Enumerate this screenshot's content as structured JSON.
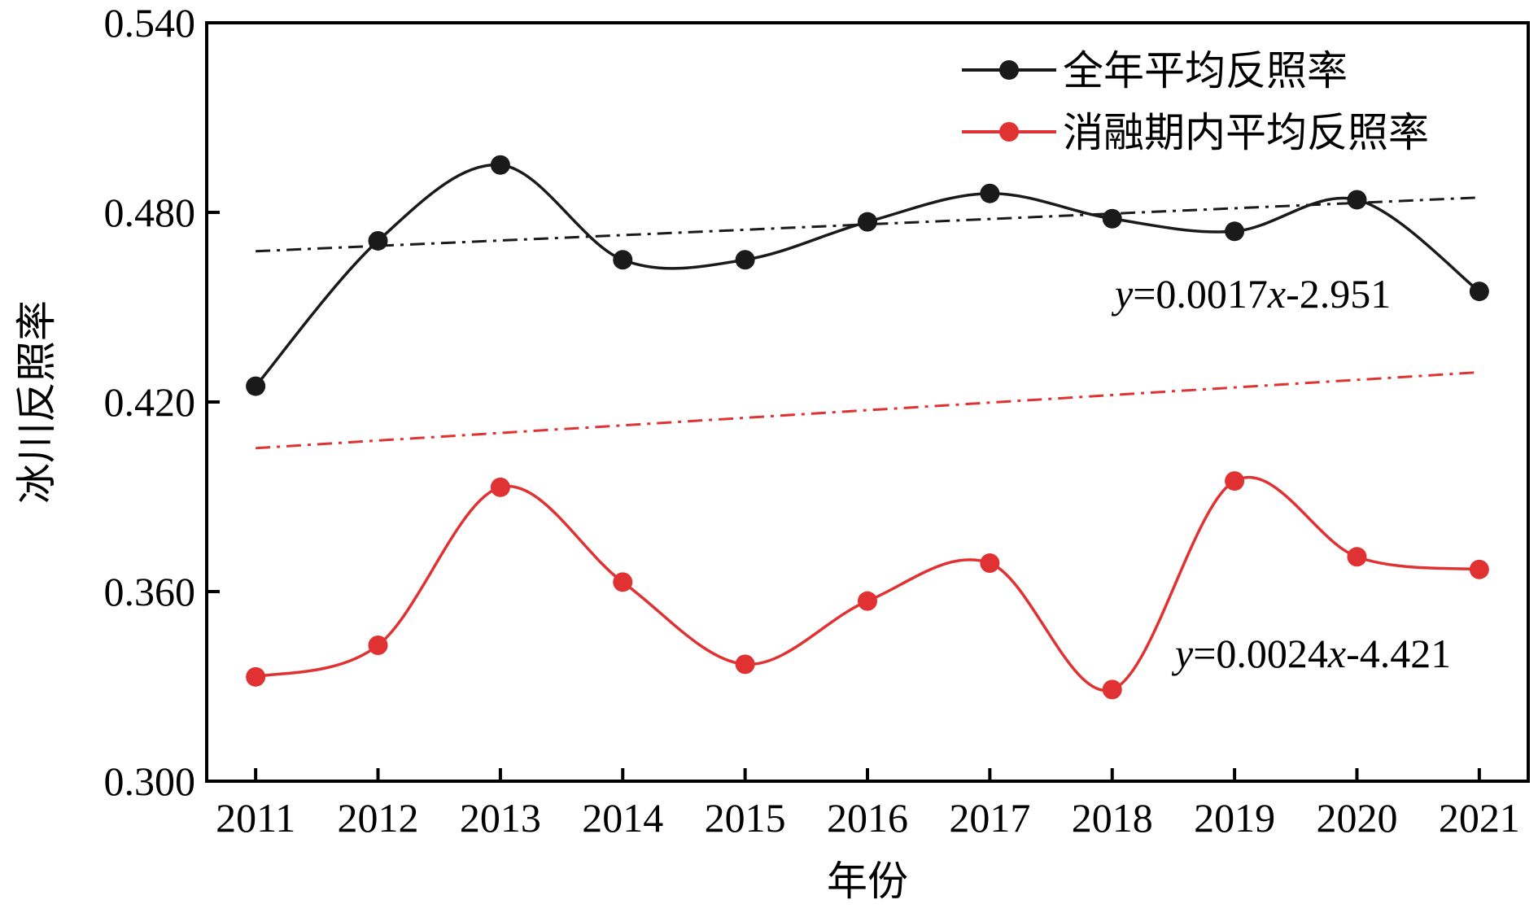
{
  "chart_data": {
    "type": "line",
    "x": [
      2011,
      2012,
      2013,
      2014,
      2015,
      2016,
      2017,
      2018,
      2019,
      2020,
      2021
    ],
    "xlabel": "年份",
    "ylabel": "冰川反照率",
    "xlim": [
      2010.6,
      2021.4
    ],
    "ylim": [
      0.3,
      0.54
    ],
    "yticks": [
      "0.300",
      "0.360",
      "0.420",
      "0.480",
      "0.540"
    ],
    "xticks": [
      "2011",
      "2012",
      "2013",
      "2014",
      "2015",
      "2016",
      "2017",
      "2018",
      "2019",
      "2020",
      "2021"
    ],
    "grid": false,
    "legend_position": "top-right",
    "smooth": true,
    "series": [
      {
        "name": "全年平均反照率",
        "color": "#1a1a1a",
        "values": [
          0.425,
          0.471,
          0.495,
          0.465,
          0.465,
          0.477,
          0.486,
          0.478,
          0.474,
          0.484,
          0.455
        ],
        "trend": {
          "slope": 0.0017,
          "intercept": -2.951,
          "equation": "y=0.0017x-2.951"
        }
      },
      {
        "name": "消融期内平均反照率",
        "color": "#e03232",
        "values": [
          0.333,
          0.343,
          0.393,
          0.363,
          0.337,
          0.357,
          0.369,
          0.329,
          0.395,
          0.371,
          0.367
        ],
        "trend": {
          "slope": 0.0024,
          "intercept": -4.421,
          "equation": "y=0.0024x-4.421"
        }
      }
    ],
    "annotations": [
      {
        "text_prefix": "y",
        "text_mid": "=0.0017",
        "text_var": "x",
        "text_suffix": "-2.951"
      },
      {
        "text_prefix": "y",
        "text_mid": "=0.0024",
        "text_var": "x",
        "text_suffix": "-4.421"
      }
    ]
  }
}
